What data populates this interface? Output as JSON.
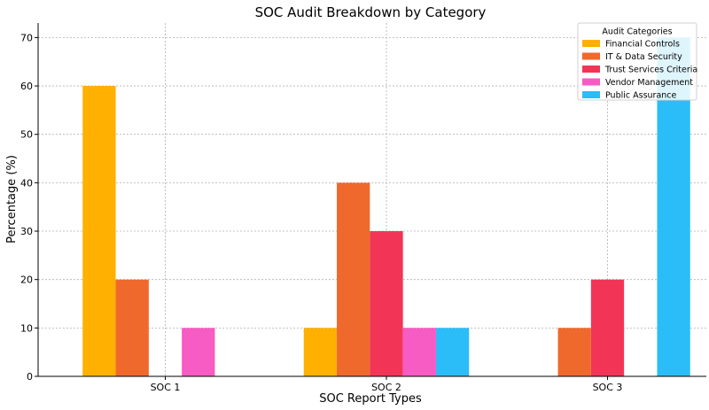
{
  "chart_data": {
    "type": "bar",
    "title": "SOC Audit Breakdown by Category",
    "xlabel": "SOC Report Types",
    "ylabel": "Percentage (%)",
    "categories": [
      "SOC 1",
      "SOC 2",
      "SOC 3"
    ],
    "series": [
      {
        "name": "Financial Controls",
        "color": "#FFB000",
        "values": [
          60,
          10,
          0
        ]
      },
      {
        "name": "IT & Data Security",
        "color": "#F0692C",
        "values": [
          20,
          40,
          10
        ]
      },
      {
        "name": "Trust Services Criteria",
        "color": "#F23557",
        "values": [
          0,
          30,
          20
        ]
      },
      {
        "name": "Vendor Management",
        "color": "#F75BC4",
        "values": [
          10,
          10,
          0
        ]
      },
      {
        "name": "Public Assurance",
        "color": "#2BBDF7",
        "values": [
          0,
          10,
          70
        ]
      }
    ],
    "ylim": [
      0,
      73
    ],
    "yticks": [
      0,
      10,
      20,
      30,
      40,
      50,
      60,
      70
    ],
    "grid": true,
    "legend": {
      "title": "Audit Categories",
      "position": "top-right"
    }
  }
}
